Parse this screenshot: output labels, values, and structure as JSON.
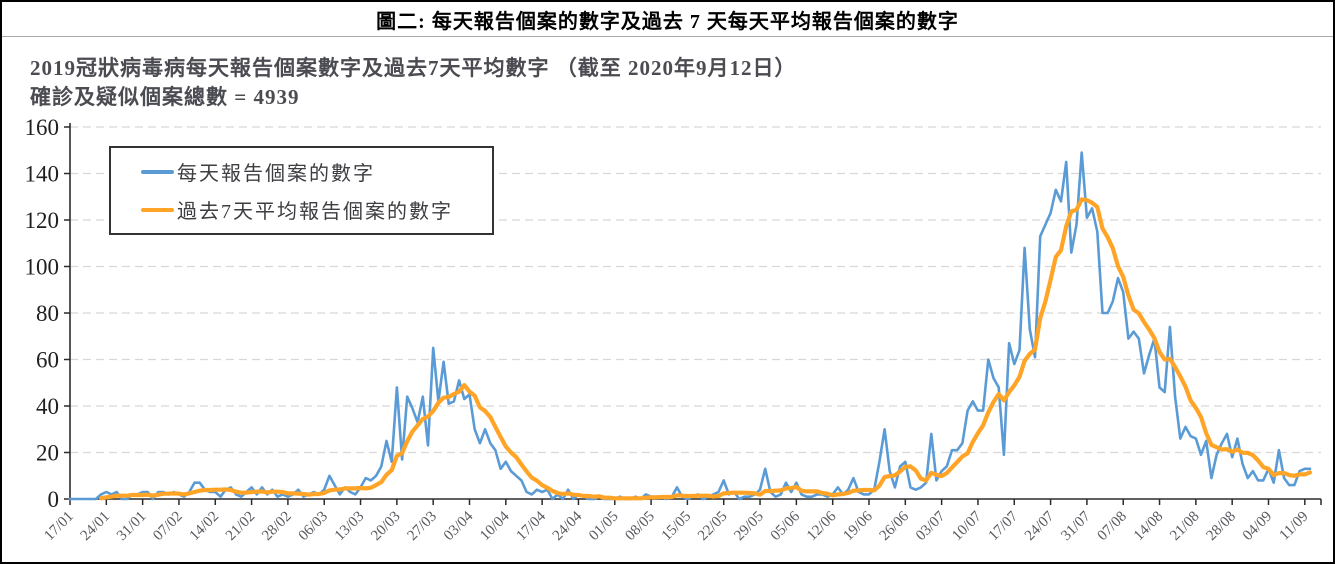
{
  "figure": {
    "title": "圖二: 每天報告個案的數字及過去 7 天每天平均報告個案的數字",
    "subtitle_line1": "2019冠狀病毒病每天報告個案數字及過去7天平均數字 （截至 2020年9月12日）",
    "subtitle_line2": "確診及疑似個案總數 = 4939",
    "as_of_date": "2020年9月12日",
    "total_confirmed_and_suspected": 4939
  },
  "chart_data": {
    "type": "line",
    "title": "2019冠狀病毒病每天報告個案數字及過去7天平均數字 （截至 2020年9月12日）",
    "xlabel": "",
    "ylabel": "",
    "ylim": [
      0,
      160
    ],
    "y_ticks": [
      0,
      20,
      40,
      60,
      80,
      100,
      120,
      140,
      160
    ],
    "grid": "horizontal-dashed",
    "gridline_color": "#D8D8D8",
    "axis_color": "#2b2b2b",
    "tick_label_color": "#58585f",
    "legend_position": "top-left",
    "x_start_date": "17/01",
    "x_end_date": "12/09",
    "x_tick_labels": [
      "17/01",
      "24/01",
      "31/01",
      "07/02",
      "14/02",
      "21/02",
      "28/02",
      "06/03",
      "13/03",
      "20/03",
      "27/03",
      "03/04",
      "10/04",
      "17/04",
      "24/04",
      "01/05",
      "08/05",
      "15/05",
      "22/05",
      "29/05",
      "05/06",
      "12/06",
      "19/06",
      "26/06",
      "03/07",
      "10/07",
      "17/07",
      "24/07",
      "31/07",
      "07/08",
      "14/08",
      "21/08",
      "28/08",
      "04/09",
      "11/09"
    ],
    "series": [
      {
        "name": "每天報告個案的數字",
        "color": "#5B9BD5",
        "line_width": 2.6,
        "values": [
          0,
          0,
          0,
          0,
          0,
          0,
          2,
          3,
          2,
          3,
          0,
          0,
          2,
          2,
          3,
          3,
          0,
          3,
          3,
          2,
          3,
          2,
          1,
          3,
          7,
          7,
          4,
          3,
          3,
          1,
          4,
          5,
          2,
          1,
          3,
          5,
          2,
          5,
          2,
          4,
          1,
          2,
          1,
          2,
          4,
          1,
          2,
          3,
          2,
          4,
          10,
          6,
          2,
          5,
          3,
          2,
          5,
          9,
          8,
          10,
          14,
          25,
          16,
          48,
          17,
          44,
          39,
          33,
          44,
          23,
          65,
          42,
          59,
          41,
          42,
          51,
          43,
          45,
          30,
          24,
          30,
          24,
          21,
          13,
          16,
          12,
          10,
          8,
          3,
          2,
          4,
          3,
          4,
          0,
          2,
          0,
          4,
          0,
          2,
          1,
          0,
          0,
          1,
          0,
          0,
          0,
          1,
          0,
          0,
          1,
          0,
          2,
          1,
          1,
          1,
          0,
          1,
          5,
          1,
          0,
          1,
          2,
          0,
          1,
          2,
          3,
          8,
          2,
          3,
          0,
          1,
          1,
          2,
          4,
          13,
          3,
          1,
          2,
          7,
          3,
          7,
          2,
          1,
          1,
          2,
          2,
          1,
          2,
          5,
          2,
          4,
          9,
          3,
          2,
          2,
          4,
          16,
          30,
          12,
          5,
          14,
          16,
          5,
          4,
          5,
          7,
          28,
          8,
          12,
          14,
          21,
          21,
          24,
          38,
          42,
          38,
          38,
          60,
          52,
          48,
          19,
          67,
          58,
          64,
          108,
          73,
          61,
          113,
          118,
          123,
          133,
          128,
          145,
          106,
          118,
          149,
          121,
          125,
          115,
          80,
          80,
          85,
          95,
          89,
          69,
          72,
          69,
          54,
          62,
          69,
          48,
          46,
          74,
          44,
          26,
          31,
          27,
          26,
          19,
          25,
          9,
          19,
          24,
          28,
          18,
          26,
          15,
          9,
          12,
          8,
          8,
          13,
          7,
          21,
          9,
          6,
          6,
          12,
          13,
          13
        ]
      },
      {
        "name": "過去7天平均報告個案的數字",
        "color": "#FFA426",
        "line_width": 4.2,
        "derivation": "7-day trailing moving average of the daily reported series (starts on day 7)"
      }
    ]
  }
}
